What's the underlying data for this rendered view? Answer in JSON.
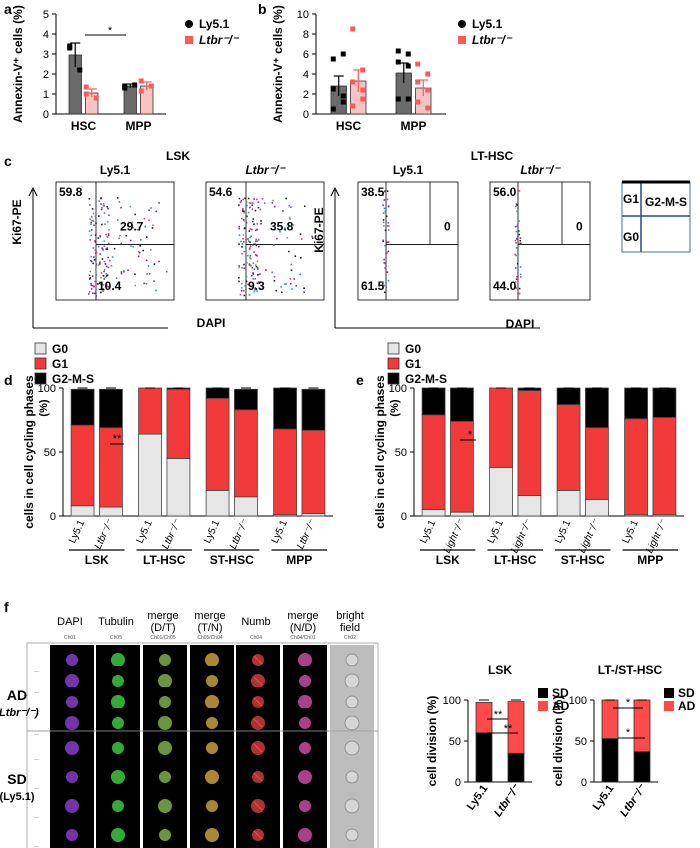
{
  "colors": {
    "dark": "#6b6b6b",
    "pink": "#f7c3c3",
    "red_dot": "#ff5a5a",
    "g0": "#e6e6e6",
    "g1": "#f23a3a",
    "g2": "#000000",
    "sd": "#000000",
    "ad": "#ff4a4a",
    "flow_blue": "#1f4f8a"
  },
  "panel_labels": [
    "a",
    "b",
    "c",
    "d",
    "e",
    "f"
  ],
  "legend_ab": {
    "items": [
      "Ly5.1",
      "Ltbr⁻/⁻"
    ]
  },
  "chart_data": [
    {
      "panel": "a",
      "type": "bar",
      "ylabel": "Annexin-V⁺ cells (%)",
      "ylim": [
        0,
        5
      ],
      "yticks": [
        "0",
        "1",
        "2",
        "3",
        "4",
        "5"
      ],
      "categories": [
        "HSC",
        "MPP"
      ],
      "series": [
        {
          "name": "Ly5.1",
          "values": [
            2.95,
            1.4
          ],
          "errors": [
            0.6,
            0.1
          ]
        },
        {
          "name": "Ltbr⁻/⁻",
          "values": [
            1.05,
            1.4
          ],
          "errors": [
            0.2,
            0.2
          ]
        }
      ],
      "significance": [
        "*"
      ]
    },
    {
      "panel": "b",
      "type": "bar",
      "ylabel": "Annexin-V⁺ cells (%)",
      "ylim": [
        0,
        10
      ],
      "yticks": [
        "0",
        "2",
        "4",
        "6",
        "8",
        "10"
      ],
      "categories": [
        "HSC",
        "MPP"
      ],
      "series": [
        {
          "name": "Ly5.1",
          "values": [
            2.8,
            4.1
          ],
          "errors": [
            1.0,
            1.0
          ]
        },
        {
          "name": "Ltbr⁻/⁻",
          "values": [
            3.3,
            2.6
          ],
          "errors": [
            1.1,
            0.8
          ]
        }
      ]
    },
    {
      "panel": "d",
      "type": "bar",
      "stacked": true,
      "ylabel": "cells in cell cycling phases (%)",
      "ylim": [
        0,
        100
      ],
      "yticks": [
        "0",
        "50",
        "100"
      ],
      "groups": [
        "LSK",
        "LT-HSC",
        "ST-HSC",
        "MPP"
      ],
      "bar_labels": [
        "Ly5.1",
        "Ltbr⁻/⁻"
      ],
      "series": [
        {
          "name": "G0",
          "values": [
            8,
            7,
            64,
            45,
            20,
            15,
            1,
            2
          ]
        },
        {
          "name": "G1",
          "values": [
            63,
            62,
            36,
            54,
            72,
            68,
            67,
            65
          ]
        },
        {
          "name": "G2-M-S",
          "values": [
            28,
            30,
            0,
            1,
            8,
            16,
            32,
            32
          ]
        }
      ],
      "significance": [
        "**"
      ]
    },
    {
      "panel": "e",
      "type": "bar",
      "stacked": true,
      "ylabel": "cells in cell cycling phases (%)",
      "ylim": [
        0,
        100
      ],
      "yticks": [
        "0",
        "50",
        "100"
      ],
      "groups": [
        "LSK",
        "LT-HSC",
        "ST-HSC",
        "MPP"
      ],
      "bar_labels": [
        "Ly5.1",
        "Light⁻/⁻"
      ],
      "series": [
        {
          "name": "G0",
          "values": [
            5,
            3,
            38,
            16,
            20,
            13,
            1,
            1
          ]
        },
        {
          "name": "G1",
          "values": [
            74,
            71,
            62,
            82,
            67,
            56,
            75,
            76
          ]
        },
        {
          "name": "G2-M-S",
          "values": [
            21,
            26,
            0,
            2,
            13,
            31,
            24,
            23
          ]
        }
      ],
      "significance": [
        "*"
      ]
    },
    {
      "panel": "f-LSK",
      "type": "bar",
      "stacked": true,
      "title": "LSK",
      "ylabel": "cell division (%)",
      "ylim": [
        0,
        100
      ],
      "yticks": [
        "0",
        "50",
        "100"
      ],
      "categories": [
        "Ly5.1",
        "Ltbr⁻/⁻"
      ],
      "series": [
        {
          "name": "SD",
          "values": [
            60,
            35
          ]
        },
        {
          "name": "AD",
          "values": [
            37,
            63
          ]
        }
      ],
      "significance": [
        "**",
        "**"
      ]
    },
    {
      "panel": "f-LT",
      "type": "bar",
      "stacked": true,
      "title": "LT-/ST-HSC",
      "ylabel": "cell division (%)",
      "ylim": [
        0,
        100
      ],
      "yticks": [
        "0",
        "50",
        "100"
      ],
      "categories": [
        "Ly5.1",
        "Ltbr⁻/⁻"
      ],
      "series": [
        {
          "name": "SD",
          "values": [
            53,
            37
          ]
        },
        {
          "name": "AD",
          "values": [
            47,
            63
          ]
        }
      ],
      "significance": [
        "*",
        "*"
      ]
    }
  ],
  "legend_cycle": {
    "items": [
      "G0",
      "G1",
      "G2-M-S"
    ]
  },
  "legend_div": {
    "items": [
      "SD",
      "AD"
    ]
  },
  "flow": {
    "title_lsk": "LSK",
    "title_lt": "LT-HSC",
    "yaxis": "Ki67-PE",
    "xaxis": "DAPI",
    "plots": [
      {
        "label": "Ly5.1",
        "tl": "59.8",
        "mid": "29.7",
        "bl": "10.4"
      },
      {
        "label": "Ltbr⁻/⁻",
        "tl": "54.6",
        "mid": "35.8",
        "bl": "9.3"
      },
      {
        "label": "Ly5.1",
        "tl": "38.5",
        "mid": "0",
        "bl": "61.5"
      },
      {
        "label": "Ltbr⁻/⁻",
        "tl": "56.0",
        "mid": "0",
        "bl": "44.0"
      }
    ],
    "gate_key": {
      "g1": "G1",
      "g2": "G2-M-S",
      "g0": "G0"
    }
  },
  "imaging": {
    "columns": [
      {
        "title": "DAPI",
        "sub": "Ch01"
      },
      {
        "title": "Tubulin",
        "sub": "Ch05"
      },
      {
        "title": "merge (D/T)",
        "sub": "Ch01/Ch05"
      },
      {
        "title": "merge (T/N)",
        "sub": "Ch05/Ch04"
      },
      {
        "title": "Numb",
        "sub": "Ch04"
      },
      {
        "title": "merge (N/D)",
        "sub": "Ch04/Ch01"
      },
      {
        "title": "bright field",
        "sub": "Ch02"
      }
    ],
    "group_ad": {
      "label": "AD",
      "sub": "(Ltbr⁻/⁻)"
    },
    "group_sd": {
      "label": "SD",
      "sub": "(Ly5.1)"
    }
  }
}
